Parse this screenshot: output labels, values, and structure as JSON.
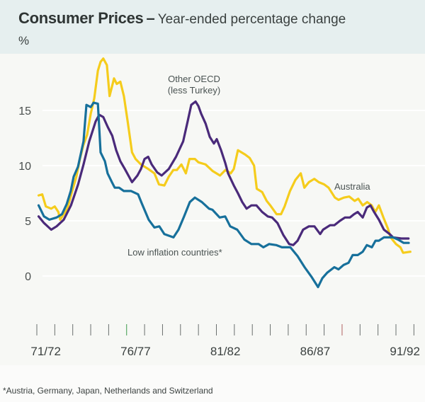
{
  "header": {
    "title": "Consumer Prices",
    "separator": "–",
    "subtitle": "Year-ended percentage change",
    "unit": "%"
  },
  "footnote": "*Austria, Germany, Japan, Netherlands and Switzerland",
  "chart_data": {
    "type": "line",
    "title": "Consumer Prices – Year-ended percentage change",
    "xlabel": "",
    "ylabel": "%",
    "ylim": [
      -3,
      20
    ],
    "yticks": [
      0,
      5,
      10,
      15
    ],
    "x_unit": "years since start of 1971/72 financial year (quarterly)",
    "xlim": [
      0,
      21
    ],
    "xtick_count": 22,
    "xtick_labels": [
      {
        "label": "71/72",
        "at": 0.5
      },
      {
        "label": "76/77",
        "at": 5.5
      },
      {
        "label": "81/82",
        "at": 10.5
      },
      {
        "label": "86/87",
        "at": 15.5
      },
      {
        "label": "91/92",
        "at": 20.5
      }
    ],
    "grid": true,
    "legend": "inline-annotations",
    "series": [
      {
        "name": "Australia",
        "color": "#f5cc1c",
        "annotation": "Australia",
        "points": [
          [
            0.1,
            7.3
          ],
          [
            0.3,
            7.4
          ],
          [
            0.5,
            6.3
          ],
          [
            0.8,
            6.1
          ],
          [
            1.0,
            6.3
          ],
          [
            1.2,
            5.8
          ],
          [
            1.3,
            5.1
          ],
          [
            1.5,
            5.6
          ],
          [
            1.7,
            6.1
          ],
          [
            1.97,
            7.7
          ],
          [
            2.2,
            9.0
          ],
          [
            2.4,
            10.6
          ],
          [
            2.6,
            11.9
          ],
          [
            2.8,
            12.8
          ],
          [
            3.0,
            14.7
          ],
          [
            3.2,
            16.1
          ],
          [
            3.4,
            18.6
          ],
          [
            3.55,
            19.4
          ],
          [
            3.7,
            19.7
          ],
          [
            3.9,
            19.1
          ],
          [
            4.05,
            16.3
          ],
          [
            4.3,
            17.9
          ],
          [
            4.45,
            17.4
          ],
          [
            4.65,
            17.6
          ],
          [
            4.85,
            16.3
          ],
          [
            5.05,
            14.1
          ],
          [
            5.3,
            11.2
          ],
          [
            5.5,
            10.6
          ],
          [
            5.8,
            10.1
          ],
          [
            6.2,
            9.7
          ],
          [
            6.55,
            9.3
          ],
          [
            6.8,
            8.3
          ],
          [
            7.1,
            8.2
          ],
          [
            7.35,
            9.0
          ],
          [
            7.6,
            9.6
          ],
          [
            7.8,
            9.6
          ],
          [
            8.05,
            10.1
          ],
          [
            8.3,
            9.3
          ],
          [
            8.5,
            10.6
          ],
          [
            8.8,
            10.6
          ],
          [
            9.0,
            10.3
          ],
          [
            9.4,
            10.1
          ],
          [
            9.8,
            9.5
          ],
          [
            10.2,
            9.1
          ],
          [
            10.5,
            9.6
          ],
          [
            10.8,
            9.3
          ],
          [
            10.97,
            9.7
          ],
          [
            11.2,
            11.4
          ],
          [
            11.6,
            11.0
          ],
          [
            11.85,
            10.7
          ],
          [
            12.1,
            10.0
          ],
          [
            12.25,
            7.9
          ],
          [
            12.55,
            7.6
          ],
          [
            12.8,
            6.8
          ],
          [
            13.0,
            6.4
          ],
          [
            13.35,
            5.6
          ],
          [
            13.6,
            5.6
          ],
          [
            13.8,
            6.3
          ],
          [
            14.1,
            7.7
          ],
          [
            14.4,
            8.7
          ],
          [
            14.7,
            9.3
          ],
          [
            14.9,
            8.0
          ],
          [
            15.15,
            8.5
          ],
          [
            15.45,
            8.8
          ],
          [
            15.7,
            8.5
          ],
          [
            16.0,
            8.3
          ],
          [
            16.25,
            8.0
          ],
          [
            16.6,
            7.1
          ],
          [
            16.8,
            6.9
          ],
          [
            17.1,
            7.1
          ],
          [
            17.4,
            7.2
          ],
          [
            17.7,
            6.8
          ],
          [
            17.9,
            7.0
          ],
          [
            18.15,
            6.4
          ],
          [
            18.4,
            6.7
          ],
          [
            18.65,
            6.4
          ],
          [
            18.85,
            5.8
          ],
          [
            19.05,
            6.4
          ],
          [
            19.3,
            5.3
          ],
          [
            19.55,
            4.3
          ],
          [
            19.7,
            3.5
          ],
          [
            20.0,
            2.9
          ],
          [
            20.25,
            2.6
          ],
          [
            20.4,
            2.1
          ],
          [
            20.8,
            2.2
          ]
        ]
      },
      {
        "name": "Other OECD (less Turkey)",
        "color": "#4a2a7a",
        "annotation": "Other OECD\n(less Turkey)",
        "points": [
          [
            0.1,
            5.4
          ],
          [
            0.4,
            4.8
          ],
          [
            0.8,
            4.2
          ],
          [
            1.1,
            4.5
          ],
          [
            1.5,
            5.1
          ],
          [
            1.9,
            6.4
          ],
          [
            2.3,
            8.3
          ],
          [
            2.6,
            10.1
          ],
          [
            2.92,
            12.2
          ],
          [
            3.275,
            14.0
          ],
          [
            3.47,
            14.6
          ],
          [
            3.7,
            14.4
          ],
          [
            3.95,
            13.5
          ],
          [
            4.2,
            12.7
          ],
          [
            4.42,
            11.4
          ],
          [
            4.65,
            10.4
          ],
          [
            4.9,
            9.7
          ],
          [
            5.1,
            9.1
          ],
          [
            5.3,
            8.5
          ],
          [
            5.6,
            9.1
          ],
          [
            5.8,
            9.7
          ],
          [
            6.0,
            10.6
          ],
          [
            6.2,
            10.8
          ],
          [
            6.4,
            10.1
          ],
          [
            6.7,
            9.4
          ],
          [
            6.95,
            9.1
          ],
          [
            7.35,
            9.7
          ],
          [
            7.75,
            10.8
          ],
          [
            8.15,
            12.2
          ],
          [
            8.4,
            14.0
          ],
          [
            8.6,
            15.5
          ],
          [
            8.84,
            15.8
          ],
          [
            9.0,
            15.4
          ],
          [
            9.15,
            14.7
          ],
          [
            9.4,
            13.8
          ],
          [
            9.63,
            12.6
          ],
          [
            9.86,
            12.0
          ],
          [
            10.02,
            12.4
          ],
          [
            10.26,
            11.4
          ],
          [
            10.5,
            10.2
          ],
          [
            10.65,
            9.3
          ],
          [
            10.97,
            8.2
          ],
          [
            11.2,
            7.5
          ],
          [
            11.44,
            6.7
          ],
          [
            11.68,
            6.1
          ],
          [
            11.95,
            6.4
          ],
          [
            12.23,
            6.4
          ],
          [
            12.55,
            5.8
          ],
          [
            12.86,
            5.4
          ],
          [
            13.1,
            5.3
          ],
          [
            13.4,
            4.8
          ],
          [
            13.73,
            3.7
          ],
          [
            14.05,
            2.9
          ],
          [
            14.28,
            2.8
          ],
          [
            14.52,
            3.2
          ],
          [
            14.83,
            4.2
          ],
          [
            15.15,
            4.5
          ],
          [
            15.46,
            4.5
          ],
          [
            15.78,
            3.8
          ],
          [
            15.94,
            4.2
          ],
          [
            16.33,
            4.6
          ],
          [
            16.57,
            4.6
          ],
          [
            16.88,
            5.0
          ],
          [
            17.16,
            5.3
          ],
          [
            17.44,
            5.3
          ],
          [
            17.67,
            5.6
          ],
          [
            17.87,
            5.8
          ],
          [
            18.15,
            5.3
          ],
          [
            18.38,
            6.2
          ],
          [
            18.58,
            6.4
          ],
          [
            18.78,
            5.8
          ],
          [
            19.05,
            5.1
          ],
          [
            19.33,
            4.2
          ],
          [
            19.65,
            3.8
          ],
          [
            19.84,
            3.5
          ],
          [
            20.3,
            3.4
          ],
          [
            20.7,
            3.4
          ]
        ]
      },
      {
        "name": "Low inflation countries*",
        "color": "#17709b",
        "annotation": "Low inflation countries*",
        "points": [
          [
            0.1,
            6.4
          ],
          [
            0.4,
            5.4
          ],
          [
            0.7,
            5.1
          ],
          [
            1.1,
            5.3
          ],
          [
            1.4,
            5.6
          ],
          [
            1.66,
            6.5
          ],
          [
            1.89,
            7.7
          ],
          [
            2.05,
            9.0
          ],
          [
            2.29,
            9.9
          ],
          [
            2.6,
            12.2
          ],
          [
            2.76,
            15.5
          ],
          [
            3.0,
            15.3
          ],
          [
            3.16,
            15.7
          ],
          [
            3.4,
            15.6
          ],
          [
            3.55,
            11.2
          ],
          [
            3.79,
            10.4
          ],
          [
            3.94,
            9.3
          ],
          [
            4.18,
            8.5
          ],
          [
            4.34,
            8.0
          ],
          [
            4.58,
            8.0
          ],
          [
            4.85,
            7.7
          ],
          [
            5.25,
            7.7
          ],
          [
            5.64,
            7.4
          ],
          [
            5.84,
            6.6
          ],
          [
            6.23,
            5.1
          ],
          [
            6.55,
            4.4
          ],
          [
            6.82,
            4.5
          ],
          [
            7.1,
            3.8
          ],
          [
            7.61,
            3.5
          ],
          [
            7.89,
            4.2
          ],
          [
            8.2,
            5.4
          ],
          [
            8.52,
            6.7
          ],
          [
            8.8,
            7.1
          ],
          [
            9.19,
            6.7
          ],
          [
            9.59,
            6.1
          ],
          [
            9.78,
            6.0
          ],
          [
            10.18,
            5.3
          ],
          [
            10.49,
            5.4
          ],
          [
            10.77,
            4.5
          ],
          [
            11.16,
            4.2
          ],
          [
            11.56,
            3.3
          ],
          [
            11.95,
            2.9
          ],
          [
            12.35,
            2.9
          ],
          [
            12.62,
            2.6
          ],
          [
            12.94,
            2.9
          ],
          [
            13.33,
            2.8
          ],
          [
            13.65,
            2.6
          ],
          [
            14.12,
            2.6
          ],
          [
            14.52,
            1.8
          ],
          [
            14.91,
            0.8
          ],
          [
            15.31,
            -0.1
          ],
          [
            15.66,
            -1.0
          ],
          [
            15.9,
            -0.2
          ],
          [
            16.17,
            0.3
          ],
          [
            16.57,
            0.8
          ],
          [
            16.8,
            0.6
          ],
          [
            17.08,
            1.0
          ],
          [
            17.36,
            1.2
          ],
          [
            17.59,
            1.9
          ],
          [
            17.87,
            1.9
          ],
          [
            18.15,
            2.2
          ],
          [
            18.38,
            2.8
          ],
          [
            18.66,
            2.6
          ],
          [
            18.86,
            3.2
          ],
          [
            19.05,
            3.2
          ],
          [
            19.33,
            3.5
          ],
          [
            19.65,
            3.5
          ],
          [
            19.84,
            3.5
          ],
          [
            20.12,
            3.3
          ],
          [
            20.43,
            3.0
          ],
          [
            20.71,
            3.0
          ]
        ]
      }
    ]
  }
}
